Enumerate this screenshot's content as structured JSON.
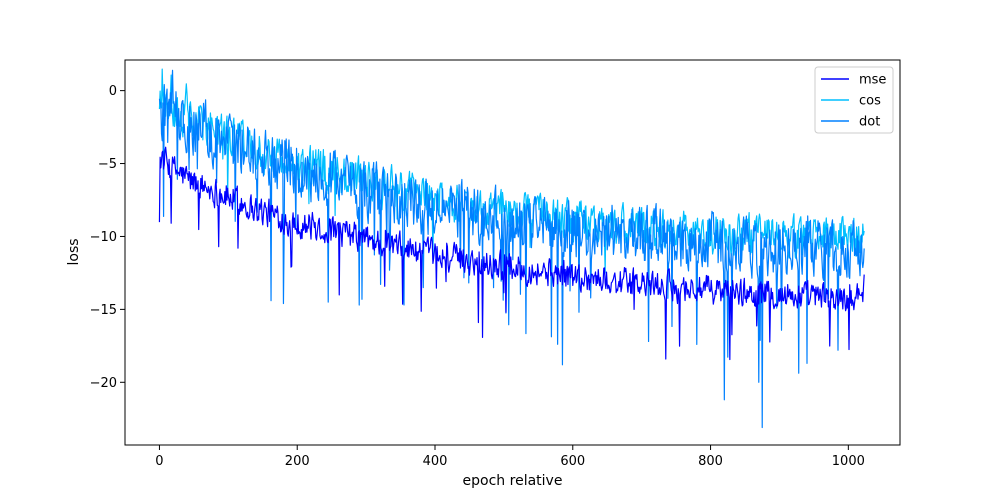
{
  "chart_data": {
    "type": "line",
    "xlabel": "epoch relative",
    "ylabel": "loss",
    "xlim": [
      -50,
      1075
    ],
    "ylim": [
      -24.3,
      2.1
    ],
    "xticks": [
      0,
      200,
      400,
      600,
      800,
      1000
    ],
    "yticks": [
      0,
      -5,
      -10,
      -15,
      -20
    ],
    "legend_position": "top-right",
    "n_points": 1024,
    "series": [
      {
        "name": "mse",
        "color": "#0000ff",
        "anchors": [
          [
            0,
            -4.5
          ],
          [
            15,
            -5.2
          ],
          [
            50,
            -6.3
          ],
          [
            100,
            -7.3
          ],
          [
            150,
            -8.3
          ],
          [
            200,
            -9.1
          ],
          [
            300,
            -10.2
          ],
          [
            400,
            -11.3
          ],
          [
            500,
            -12.0
          ],
          [
            600,
            -12.7
          ],
          [
            700,
            -13.3
          ],
          [
            800,
            -13.7
          ],
          [
            900,
            -14.0
          ],
          [
            1000,
            -14.3
          ],
          [
            1023,
            -13.5
          ]
        ],
        "noise": 0.9,
        "spike_rate": 0.02,
        "spike_depth": 3.5
      },
      {
        "name": "cos",
        "color": "#00bfff",
        "anchors": [
          [
            0,
            -0.8
          ],
          [
            50,
            -2.0
          ],
          [
            100,
            -3.2
          ],
          [
            200,
            -5.0
          ],
          [
            300,
            -6.2
          ],
          [
            400,
            -7.5
          ],
          [
            500,
            -8.3
          ],
          [
            600,
            -9.0
          ],
          [
            700,
            -9.4
          ],
          [
            800,
            -9.8
          ],
          [
            900,
            -10.0
          ],
          [
            1000,
            -10.3
          ],
          [
            1023,
            -10.0
          ]
        ],
        "noise": 1.3,
        "spike_rate": 0.01,
        "spike_depth": 2.5
      },
      {
        "name": "dot",
        "color": "#0080ff",
        "anchors": [
          [
            0,
            -1.0
          ],
          [
            50,
            -2.3
          ],
          [
            100,
            -3.5
          ],
          [
            200,
            -5.5
          ],
          [
            300,
            -6.8
          ],
          [
            400,
            -8.0
          ],
          [
            500,
            -8.8
          ],
          [
            600,
            -9.5
          ],
          [
            700,
            -10.0
          ],
          [
            800,
            -10.4
          ],
          [
            900,
            -10.8
          ],
          [
            1000,
            -11.0
          ],
          [
            1023,
            -10.5
          ]
        ],
        "noise": 1.8,
        "spike_rate": 0.055,
        "spike_depth": 5.0,
        "extremes": [
          [
            162,
            -14.4
          ],
          [
            180,
            -14.6
          ],
          [
            245,
            -14.5
          ],
          [
            290,
            -14.7
          ],
          [
            355,
            -14.7
          ],
          [
            585,
            -18.8
          ],
          [
            710,
            -17.2
          ],
          [
            780,
            -17.4
          ],
          [
            820,
            -21.2
          ],
          [
            870,
            -20.0
          ],
          [
            875,
            -23.1
          ],
          [
            940,
            -18.7
          ],
          [
            985,
            -17.8
          ]
        ]
      }
    ]
  }
}
